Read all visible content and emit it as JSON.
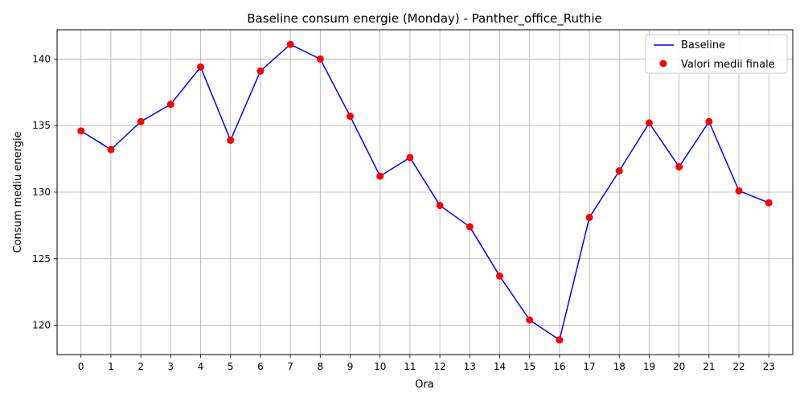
{
  "chart_data": {
    "type": "line",
    "title": "Baseline consum energie (Monday) - Panther_office_Ruthie",
    "xlabel": "Ora",
    "ylabel": "Consum mediu energie",
    "x": [
      0,
      1,
      2,
      3,
      4,
      5,
      6,
      7,
      8,
      9,
      10,
      11,
      12,
      13,
      14,
      15,
      16,
      17,
      18,
      19,
      20,
      21,
      22,
      23
    ],
    "x_tick_labels": [
      "0",
      "1",
      "2",
      "3",
      "4",
      "5",
      "6",
      "7",
      "8",
      "9",
      "10",
      "11",
      "12",
      "13",
      "14",
      "15",
      "16",
      "17",
      "18",
      "19",
      "20",
      "21",
      "22",
      "23"
    ],
    "y_ticks": [
      120,
      125,
      130,
      135,
      140
    ],
    "y_tick_labels": [
      "120",
      "125",
      "130",
      "135",
      "140"
    ],
    "xlim": [
      -0.8,
      23.8
    ],
    "ylim": [
      117.8,
      142.2
    ],
    "grid": true,
    "legend_position": "top-right",
    "series": [
      {
        "name": "Baseline",
        "kind": "line",
        "color": "#0000ff",
        "values": [
          134.6,
          133.2,
          135.3,
          136.6,
          139.4,
          133.9,
          139.1,
          141.1,
          140.0,
          135.7,
          131.2,
          132.6,
          129.0,
          127.4,
          123.7,
          120.4,
          118.9,
          128.1,
          131.6,
          135.2,
          131.9,
          135.3,
          130.1,
          129.2
        ]
      },
      {
        "name": "Valori medii finale",
        "kind": "scatter",
        "color": "#ff0000",
        "values": [
          134.6,
          133.2,
          135.3,
          136.6,
          139.4,
          133.9,
          139.1,
          141.1,
          140.0,
          135.7,
          131.2,
          132.6,
          129.0,
          127.4,
          123.7,
          120.4,
          118.9,
          128.1,
          131.6,
          135.2,
          131.9,
          135.3,
          130.1,
          129.2
        ]
      }
    ]
  }
}
